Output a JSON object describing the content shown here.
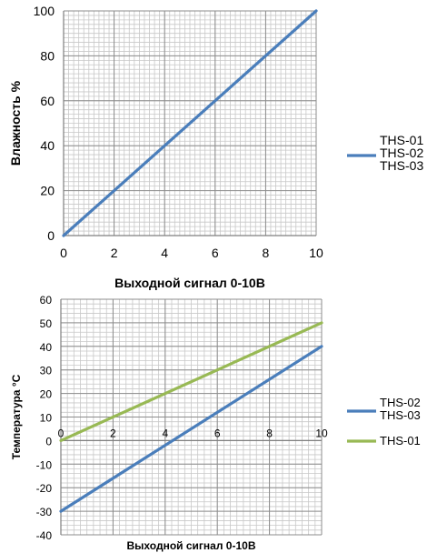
{
  "chart_data": [
    {
      "type": "line",
      "xlabel": "Выходной сигнал 0-10В",
      "ylabel": "Влажность %",
      "xlim": [
        0,
        10
      ],
      "ylim": [
        0,
        100
      ],
      "x_ticks": [
        "0",
        "2",
        "4",
        "6",
        "8",
        "10"
      ],
      "y_ticks": [
        "0",
        "20",
        "40",
        "60",
        "80",
        "100"
      ],
      "grid": true,
      "legend_position": "right",
      "series": [
        {
          "name": "THS-01\nTHS-02\nTHS-03",
          "name_lines": [
            "THS-01",
            "THS-02",
            "THS-03"
          ],
          "color": "#4a7ebb",
          "x": [
            0,
            10
          ],
          "y": [
            0,
            100
          ]
        }
      ]
    },
    {
      "type": "line",
      "xlabel": "Выходной сигнал 0-10В",
      "ylabel": "Температура °C",
      "xlim": [
        0,
        10
      ],
      "ylim": [
        -40,
        60
      ],
      "x_ticks": [
        "0",
        "2",
        "4",
        "6",
        "8",
        "10"
      ],
      "y_ticks": [
        "-40",
        "-30",
        "-20",
        "-10",
        "0",
        "10",
        "20",
        "30",
        "40",
        "50",
        "60"
      ],
      "grid": true,
      "legend_position": "right",
      "series": [
        {
          "name": "THS-02\nTHS-03",
          "name_lines": [
            "THS-02",
            "THS-03"
          ],
          "color": "#4a7ebb",
          "x": [
            0,
            10
          ],
          "y": [
            -30,
            40
          ]
        },
        {
          "name": "THS-01",
          "name_lines": [
            "THS-01"
          ],
          "color": "#98b954",
          "x": [
            0,
            10
          ],
          "y": [
            0,
            50
          ]
        }
      ]
    }
  ]
}
